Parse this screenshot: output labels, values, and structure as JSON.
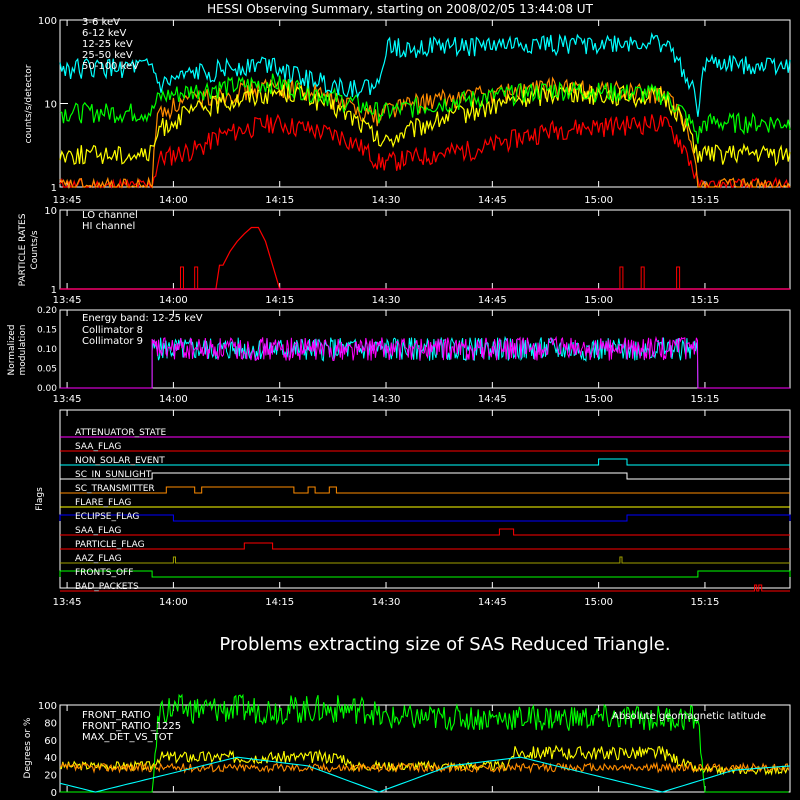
{
  "title": "HESSI Observing Summary, starting on 2008/02/05 13:44:08 UT",
  "time_ticks": [
    "13:45",
    "14:00",
    "14:15",
    "14:30",
    "14:45",
    "15:00",
    "15:15"
  ],
  "message": "Problems extracting size of SAS Reduced Triangle.",
  "colors": {
    "cyan": "#00ffff",
    "green": "#00ff00",
    "yellow": "#ffff00",
    "orange": "#ff8c00",
    "red": "#ff0000",
    "magenta": "#ff00ff",
    "blue": "#0000ff",
    "pink": "#ff0080",
    "olive": "#a0a000",
    "white": "#ffffff"
  },
  "chart_data": [
    {
      "id": "count-rates",
      "type": "line",
      "ylabel": "counts/s/detector",
      "yscale": "log",
      "ylim": [
        1,
        100
      ],
      "yticks": [
        "1",
        "10",
        "100"
      ],
      "x_range_minutes": [
        0,
        103
      ],
      "series": [
        {
          "name": "3-6 keV",
          "color": "#ff0000",
          "x": [
            0,
            13,
            14,
            20,
            22,
            30,
            40,
            45,
            46,
            60,
            70,
            85,
            90,
            95,
            100,
            103
          ],
          "y": [
            1,
            1,
            2.2,
            3,
            4,
            6,
            4,
            2,
            2,
            3,
            5,
            6,
            1,
            1,
            1,
            1
          ]
        },
        {
          "name": "6-12 keV",
          "color": "#ff8c00",
          "x": [
            0,
            13,
            14,
            20,
            30,
            33,
            40,
            45,
            46,
            60,
            70,
            85,
            90,
            91,
            103
          ],
          "y": [
            1,
            1,
            8,
            12,
            16,
            16,
            10,
            7,
            9,
            13,
            16,
            13,
            1,
            1,
            1
          ]
        },
        {
          "name": "12-25 keV",
          "color": "#ffff00",
          "x": [
            0,
            13,
            14,
            20,
            30,
            33,
            40,
            45,
            46,
            60,
            70,
            85,
            90,
            91,
            103
          ],
          "y": [
            2.5,
            2.5,
            5,
            9,
            14,
            14,
            8,
            3.5,
            3.5,
            9,
            14,
            12,
            2.5,
            2.5,
            2.5
          ]
        },
        {
          "name": "25-50 keV",
          "color": "#00ff00",
          "x": [
            0,
            13,
            14,
            20,
            30,
            33,
            40,
            45,
            46,
            60,
            70,
            85,
            90,
            91,
            103
          ],
          "y": [
            8,
            8,
            12,
            15,
            18,
            16,
            11,
            8,
            8,
            12,
            15,
            13,
            4,
            6,
            6
          ]
        },
        {
          "name": "50-100 keV",
          "color": "#00ffff",
          "x": [
            0,
            13,
            14,
            20,
            30,
            33,
            40,
            45,
            46,
            60,
            66,
            85,
            90,
            91,
            103
          ],
          "y": [
            27,
            27,
            16,
            24,
            32,
            22,
            16,
            16,
            48,
            50,
            52,
            54,
            8,
            30,
            30
          ]
        }
      ]
    },
    {
      "id": "particle-rates",
      "type": "line",
      "ylabel": "PARTICLE RATES",
      "ylabel2": "Counts/s",
      "yscale": "log",
      "ylim": [
        1,
        10
      ],
      "yticks": [
        "1",
        "10"
      ],
      "series": [
        {
          "name": "LO channel",
          "color": "#ff0000",
          "x": [
            0,
            22,
            22.5,
            23,
            24,
            25,
            26,
            27,
            28,
            29,
            30,
            31,
            103
          ],
          "y": [
            1,
            1,
            2,
            2,
            3,
            4,
            5,
            6,
            6,
            4,
            2,
            1,
            1
          ]
        },
        {
          "name": "HI channel",
          "color": "#ff0080",
          "x": [
            0,
            103
          ],
          "y": [
            1,
            1
          ]
        }
      ]
    },
    {
      "id": "modulation",
      "type": "line",
      "ylabel": "Normalized",
      "ylabel2": "modulation",
      "ylim": [
        0,
        0.2
      ],
      "yticks": [
        "0.00",
        "0.05",
        "0.10",
        "0.15",
        "0.20"
      ],
      "annotation": "Energy band: 12-25 keV",
      "series": [
        {
          "name": "Collimator 8",
          "color": "#00ffff",
          "mean": 0.1
        },
        {
          "name": "Collimator 9",
          "color": "#ff00ff",
          "mean": 0.1
        }
      ],
      "active_range_minutes": [
        13,
        90
      ]
    },
    {
      "id": "flags",
      "type": "line",
      "ylabel": "Flags",
      "flags": [
        {
          "name": "ATTENUATOR_STATE",
          "color": "#ff00ff",
          "segments": []
        },
        {
          "name": "SAA_FLAG",
          "color": "#ff0000",
          "segments": []
        },
        {
          "name": "NON_SOLAR_EVENT",
          "color": "#00ffff",
          "segments": [
            [
              76,
              80
            ]
          ]
        },
        {
          "name": "SC_IN_SUNLIGHT",
          "color": "#ffffff",
          "segments": [
            [
              13,
              80
            ]
          ]
        },
        {
          "name": "SC_TRANSMITTER",
          "color": "#ff8c00",
          "segments": [
            [
              15,
              19
            ],
            [
              20,
              33
            ],
            [
              35,
              36
            ],
            [
              38,
              39
            ]
          ]
        },
        {
          "name": "FLARE_FLAG",
          "color": "#ffff00",
          "segments": []
        },
        {
          "name": "ECLIPSE_FLAG",
          "color": "#0000ff",
          "segments": [
            [
              0,
              16
            ],
            [
              80,
              103
            ]
          ]
        },
        {
          "name": "SAA_FLAG",
          "color": "#ff0000",
          "segments": [
            [
              62,
              64
            ]
          ]
        },
        {
          "name": "PARTICLE_FLAG",
          "color": "#ff0000",
          "segments": [
            [
              26,
              30
            ]
          ]
        },
        {
          "name": "AAZ_FLAG",
          "color": "#a0a000",
          "segments": [
            [
              16,
              16.3
            ],
            [
              79,
              79.3
            ]
          ]
        },
        {
          "name": "FRONTS_OFF",
          "color": "#00ff00",
          "segments": [
            [
              0,
              13
            ],
            [
              90,
              103
            ]
          ]
        },
        {
          "name": "BAD_PACKETS",
          "color": "#ff0000",
          "segments": [
            [
              98,
              98.3
            ],
            [
              98.6,
              99
            ]
          ]
        }
      ]
    },
    {
      "id": "ratios",
      "type": "line",
      "ylabel": "Degrees or %",
      "ylim": [
        0,
        100
      ],
      "yticks": [
        "0",
        "20",
        "40",
        "60",
        "80",
        "100"
      ],
      "annotation": "Absolute geomagnetic latitude",
      "series": [
        {
          "name": "FRONT_RATIO",
          "color": "#ffff00",
          "x": [
            0,
            13,
            14,
            40,
            41,
            63,
            64,
            85,
            90,
            91,
            103
          ],
          "y": [
            30,
            30,
            40,
            40,
            30,
            30,
            45,
            45,
            25,
            25,
            25
          ]
        },
        {
          "name": "FRONT_RATIO_1225",
          "color": "#00ff00",
          "x": [
            0,
            13,
            14,
            44,
            45,
            90,
            91,
            103
          ],
          "y": [
            0,
            0,
            95,
            95,
            85,
            85,
            0,
            0
          ]
        },
        {
          "name": "MAX_DET_VS_TOT",
          "color": "#ff8c00",
          "x": [
            0,
            103
          ],
          "y": [
            28,
            28
          ]
        },
        {
          "name": "Absolute geomagnetic latitude",
          "color": "#00ffff",
          "x": [
            0,
            5,
            15,
            25,
            35,
            45,
            55,
            65,
            75,
            85,
            95,
            103
          ],
          "y": [
            10,
            0,
            20,
            40,
            30,
            0,
            30,
            40,
            20,
            0,
            25,
            30
          ]
        }
      ]
    }
  ]
}
